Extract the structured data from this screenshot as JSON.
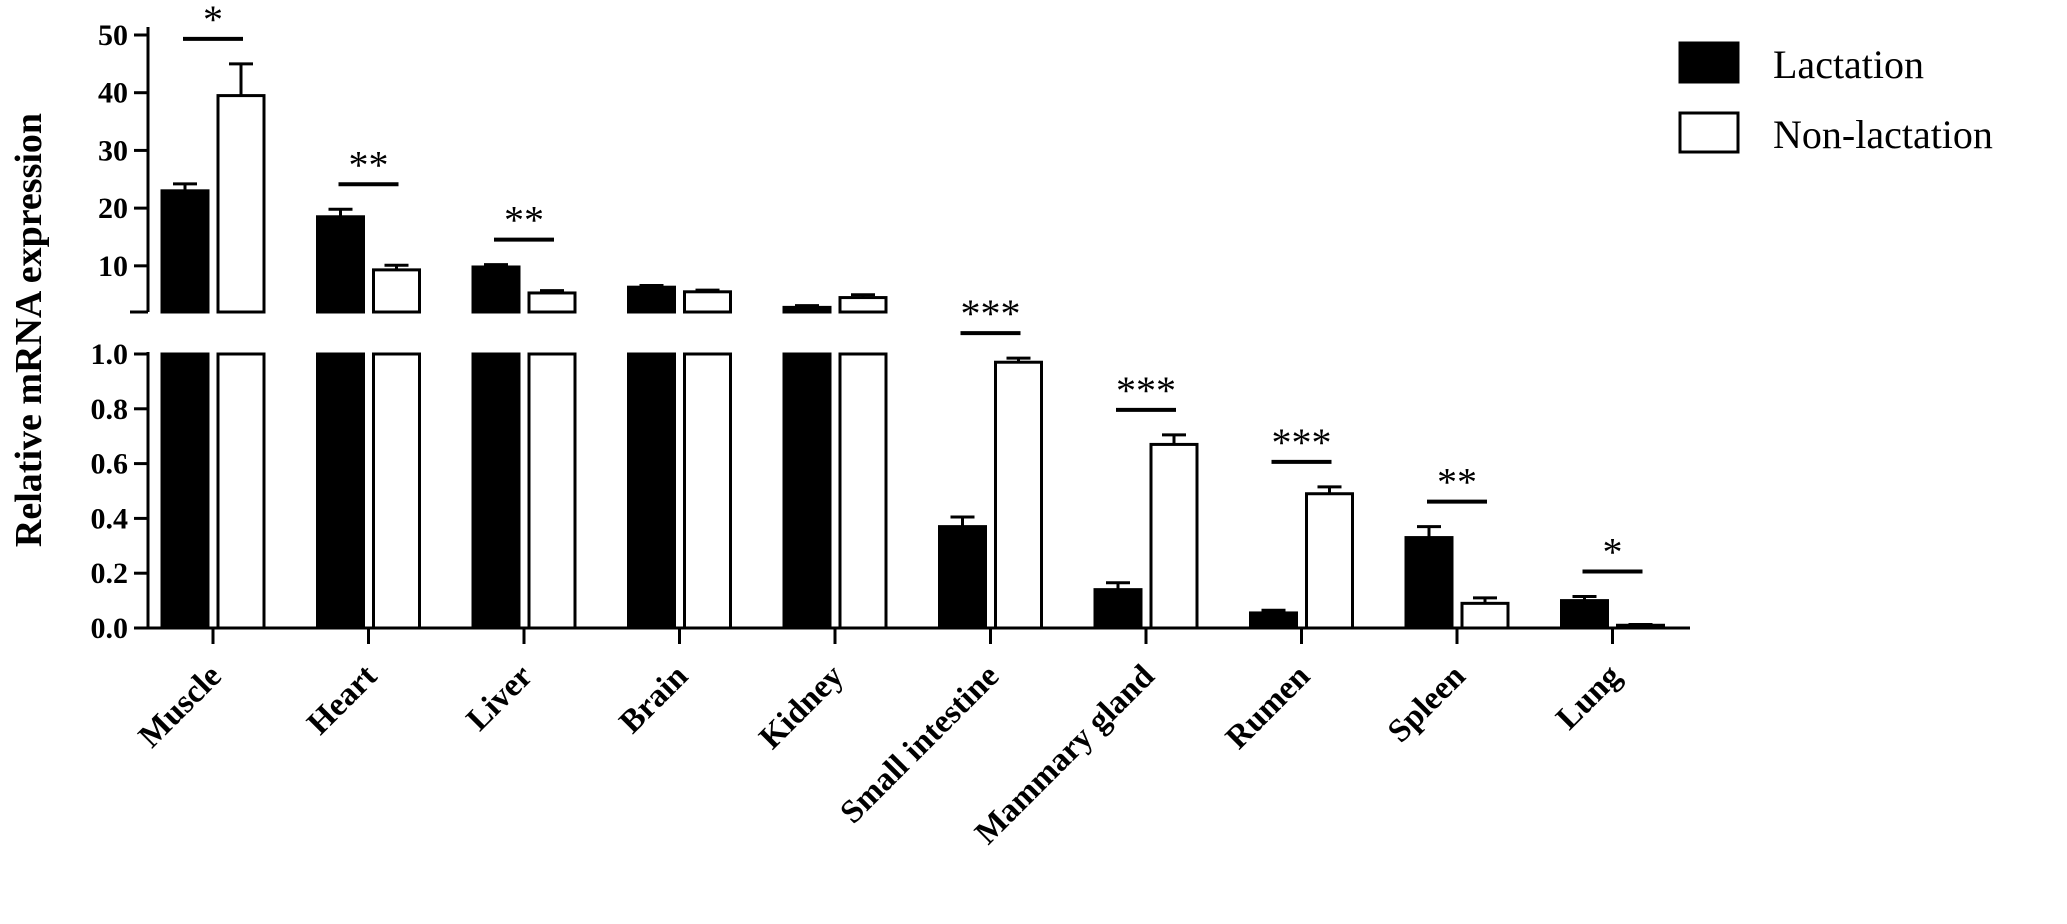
{
  "chart_data": {
    "type": "bar",
    "title": "",
    "xlabel": "",
    "ylabel": "Relative mRNA expression",
    "categories": [
      "Muscle",
      "Heart",
      "Liver",
      "Brain",
      "Kidney",
      "Small intestine",
      "Mammary gland",
      "Rumen",
      "Spleen",
      "Lung"
    ],
    "series": [
      {
        "name": "Lactation",
        "color": "#000000",
        "values": [
          23.0,
          18.5,
          9.8,
          6.3,
          2.8,
          0.37,
          0.14,
          0.055,
          0.33,
          0.1
        ],
        "errors": [
          1.2,
          1.3,
          0.4,
          0.3,
          0.3,
          0.035,
          0.025,
          0.01,
          0.04,
          0.015
        ]
      },
      {
        "name": "Non-lactation",
        "color": "#ffffff",
        "values": [
          39.5,
          9.3,
          5.3,
          5.5,
          4.5,
          0.97,
          0.67,
          0.49,
          0.09,
          0.01
        ],
        "errors": [
          5.5,
          0.8,
          0.4,
          0.3,
          0.5,
          0.015,
          0.035,
          0.025,
          0.02,
          0.003
        ]
      }
    ],
    "significance": [
      "*",
      "**",
      "**",
      "",
      "",
      "***",
      "***",
      "***",
      "**",
      "*"
    ],
    "y_axis": {
      "broken": true,
      "lower_range": [
        0,
        1.0
      ],
      "upper_range": [
        2,
        50
      ],
      "lower_ticks": [
        "0.0",
        "0.2",
        "0.4",
        "0.6",
        "0.8",
        "1.0"
      ],
      "upper_ticks": [
        "10",
        "20",
        "30",
        "40",
        "50"
      ]
    },
    "grid": false,
    "legend_position": "top-right",
    "error_bars": true
  }
}
